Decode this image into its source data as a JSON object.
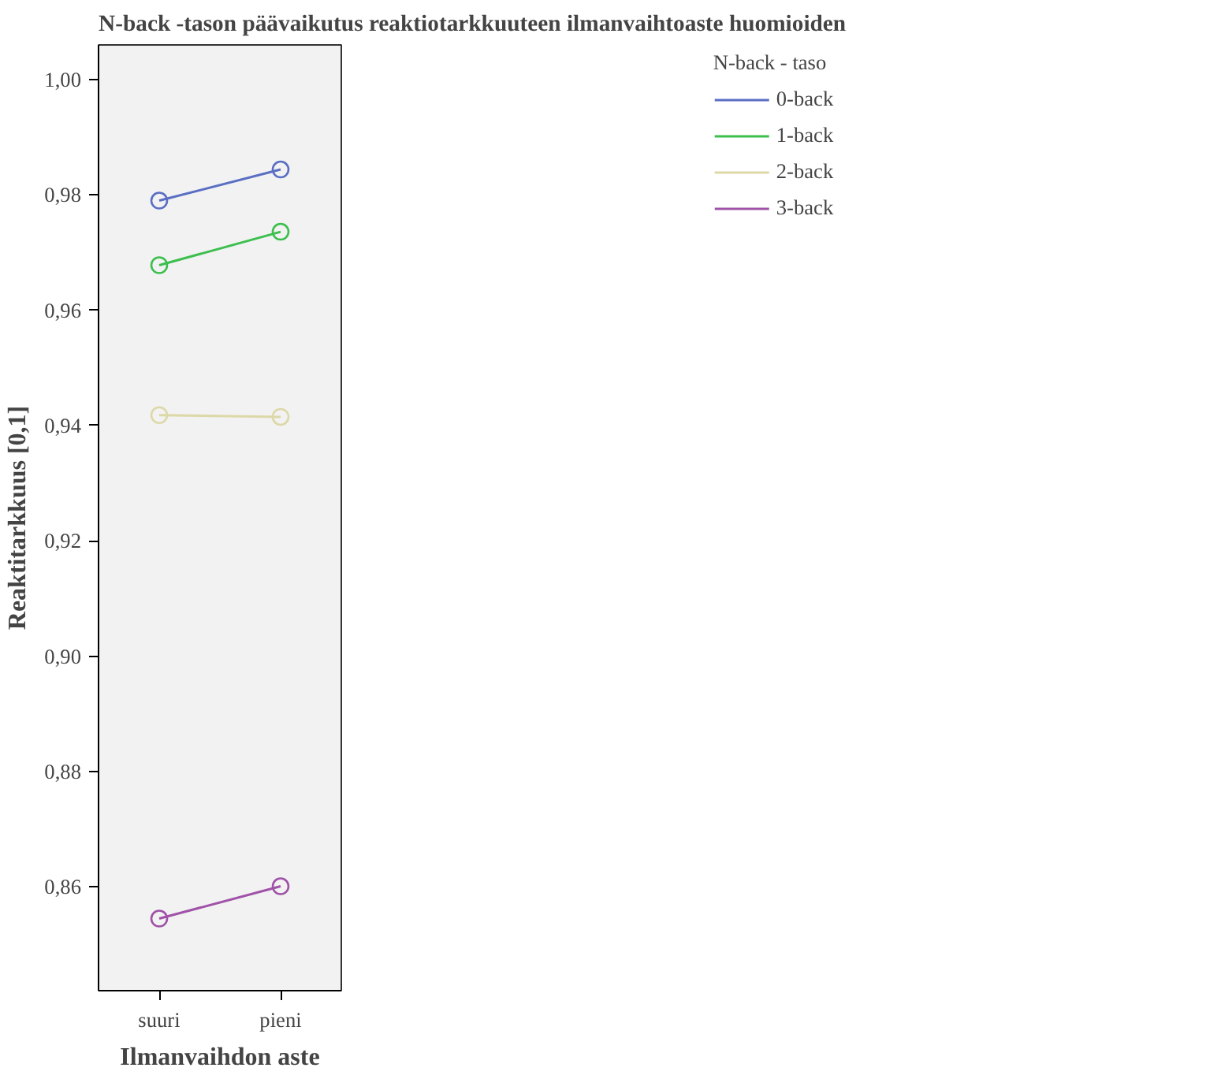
{
  "chart_data": {
    "type": "line",
    "title": "N-back -tason päävaikutus reaktiotarkkuuteen ilmanvaihtoaste huomioiden",
    "xlabel": "Ilmanvaihdon aste",
    "ylabel": "Reaktitarkkuus [0,1]",
    "legend_title": "N-back - taso",
    "categories": [
      "suuri",
      "pieni"
    ],
    "series": [
      {
        "name": "0-back",
        "color": "#5a6fc4",
        "values": [
          0.979,
          0.9844
        ]
      },
      {
        "name": "1-back",
        "color": "#3cbf4e",
        "values": [
          0.9678,
          0.9736
        ]
      },
      {
        "name": "2-back",
        "color": "#ddd8a8",
        "values": [
          0.9418,
          0.9415
        ]
      },
      {
        "name": "3-back",
        "color": "#a052a8",
        "values": [
          0.8545,
          0.8601
        ]
      }
    ],
    "ylim": [
      0.842,
      1.006
    ],
    "yticks": [
      {
        "value": 0.86,
        "label": "0,86"
      },
      {
        "value": 0.88,
        "label": "0,88"
      },
      {
        "value": 0.9,
        "label": "0,90"
      },
      {
        "value": 0.92,
        "label": "0,92"
      },
      {
        "value": 0.94,
        "label": "0,94"
      },
      {
        "value": 0.96,
        "label": "0,96"
      },
      {
        "value": 0.98,
        "label": "0,98"
      },
      {
        "value": 1.0,
        "label": "1,00"
      }
    ],
    "grid": false,
    "legend": "right",
    "marker": "circle",
    "line_style": "solid"
  }
}
